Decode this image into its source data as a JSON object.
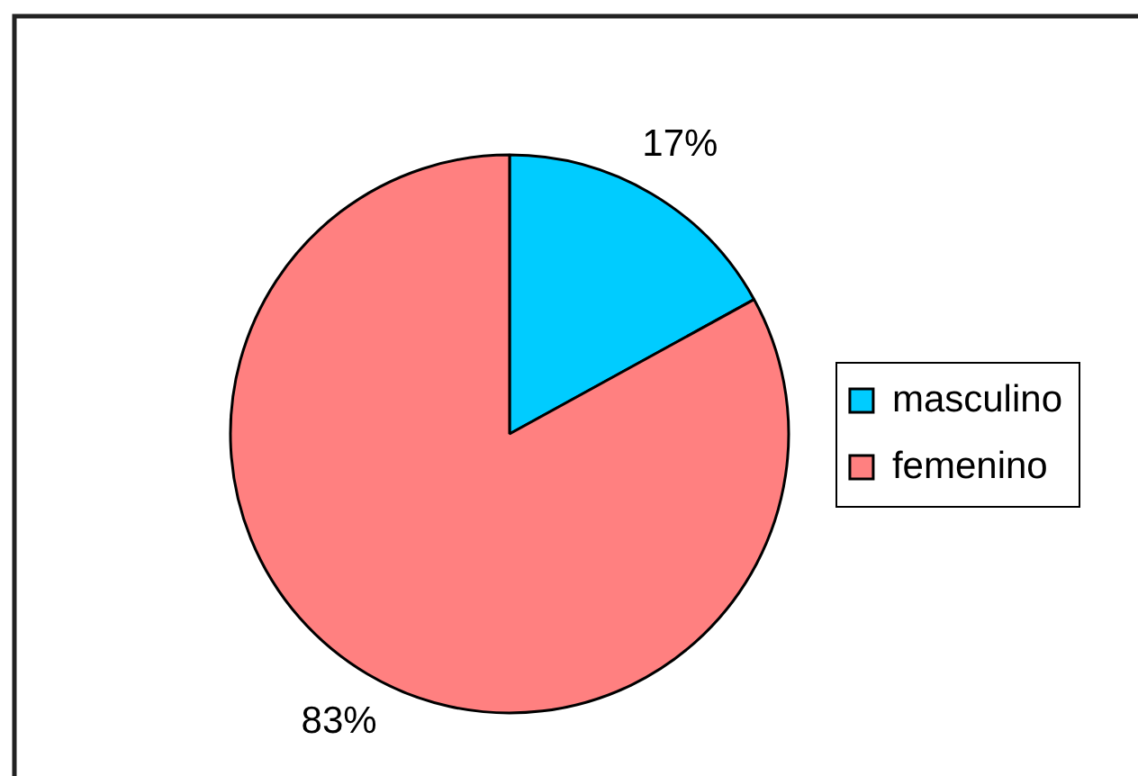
{
  "chart_data": {
    "type": "pie",
    "categories": [
      "masculino",
      "femenino"
    ],
    "values": [
      17,
      83
    ],
    "colors": [
      "#00ccff",
      "#ff8080"
    ],
    "value_labels": [
      "17%",
      "83%"
    ],
    "legend": "right"
  }
}
